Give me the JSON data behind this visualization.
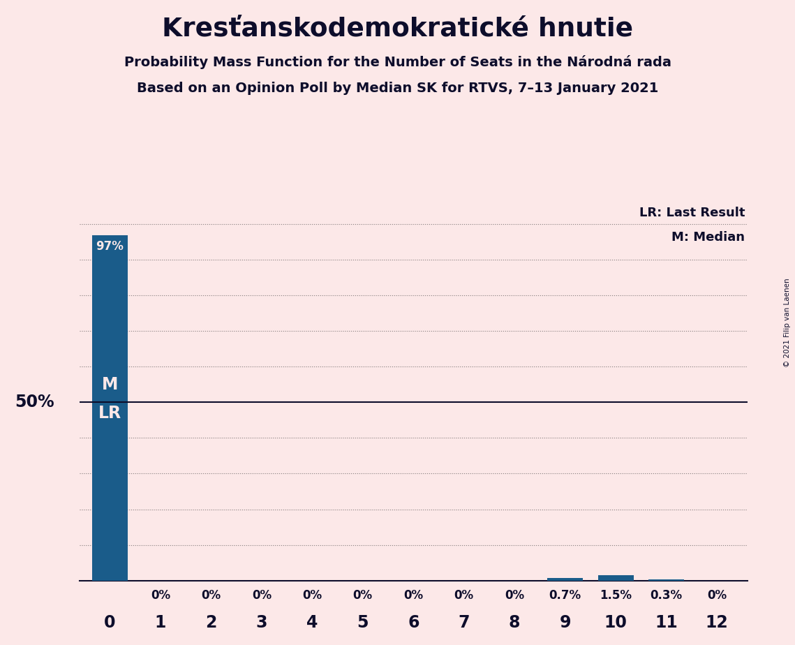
{
  "title": "Kresťanskodemokratické hnutie",
  "subtitle1": "Probability Mass Function for the Number of Seats in the Národná rada",
  "subtitle2": "Based on an Opinion Poll by Median SK for RTVS, 7–13 January 2021",
  "copyright": "© 2021 Filip van Laenen",
  "categories": [
    0,
    1,
    2,
    3,
    4,
    5,
    6,
    7,
    8,
    9,
    10,
    11,
    12
  ],
  "values": [
    97.0,
    0.0,
    0.0,
    0.0,
    0.0,
    0.0,
    0.0,
    0.0,
    0.0,
    0.7,
    1.5,
    0.3,
    0.0
  ],
  "bar_color": "#1a5c8a",
  "bg_color": "#fce8e8",
  "title_color": "#0d0d2b",
  "label_color": "#0d0d2b",
  "bar_label_color_inside": "#fce8e8",
  "bar_label_color_outside": "#0d0d2b",
  "ylabel_50": "50%",
  "legend_lr": "LR: Last Result",
  "legend_m": "M: Median",
  "bar_labels": [
    "97%",
    "0%",
    "0%",
    "0%",
    "0%",
    "0%",
    "0%",
    "0%",
    "0%",
    "0.7%",
    "1.5%",
    "0.3%",
    "0%"
  ]
}
